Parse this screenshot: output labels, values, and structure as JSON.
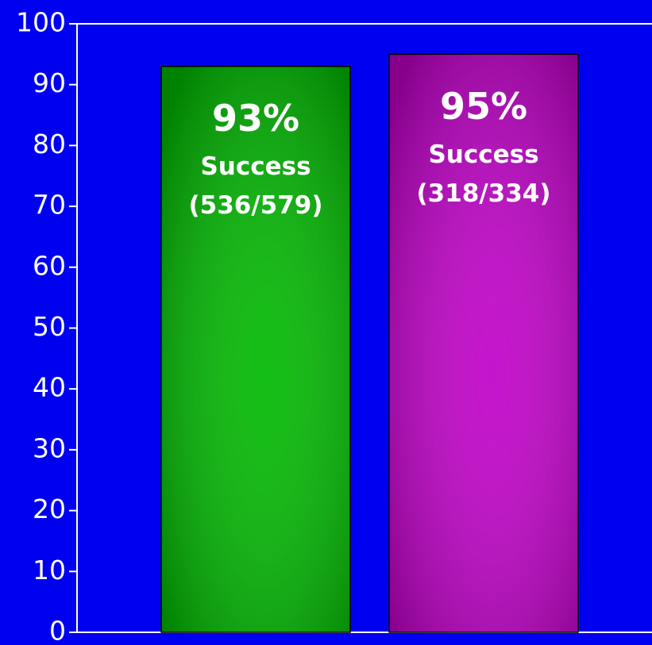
{
  "chart_data": {
    "type": "bar",
    "categories": [
      null,
      null
    ],
    "values": [
      93,
      95
    ],
    "value_labels": [
      "93%",
      "95%"
    ],
    "sublabels": [
      [
        "Success",
        "(536/579)"
      ],
      [
        "Success",
        "(318/334)"
      ]
    ],
    "colors": [
      "#00b800",
      "#c000c8"
    ],
    "ylim": [
      0,
      100
    ],
    "yticks": [
      0,
      10,
      20,
      30,
      40,
      50,
      60,
      70,
      80,
      90,
      100
    ]
  }
}
